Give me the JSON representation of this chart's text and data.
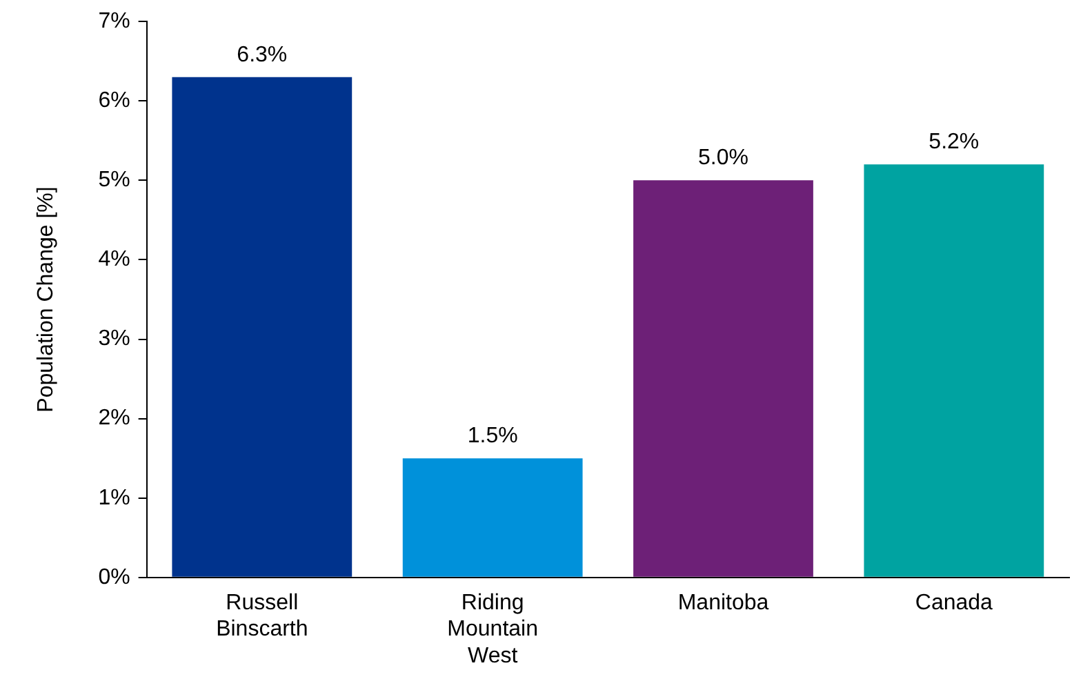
{
  "chart_data": {
    "type": "bar",
    "ylabel": "Population Change [%]",
    "categories": [
      "Russell Binscarth",
      "Riding Mountain West",
      "Manitoba",
      "Canada"
    ],
    "values": [
      6.3,
      1.5,
      5.0,
      5.2
    ],
    "colors": [
      "#00338d",
      "#0091da",
      "#6d2077",
      "#00a3a1"
    ],
    "value_labels": [
      "6.3%",
      "1.5%",
      "5.0%",
      "5.2%"
    ],
    "ylim": [
      0,
      7
    ],
    "yticks": [
      {
        "value": 0,
        "label": "0%"
      },
      {
        "value": 1,
        "label": "1%"
      },
      {
        "value": 2,
        "label": "2%"
      },
      {
        "value": 3,
        "label": "3%"
      },
      {
        "value": 4,
        "label": "4%"
      },
      {
        "value": 5,
        "label": "5%"
      },
      {
        "value": 6,
        "label": "6%"
      },
      {
        "value": 7,
        "label": "7%"
      }
    ],
    "grid": false,
    "legend": false
  }
}
